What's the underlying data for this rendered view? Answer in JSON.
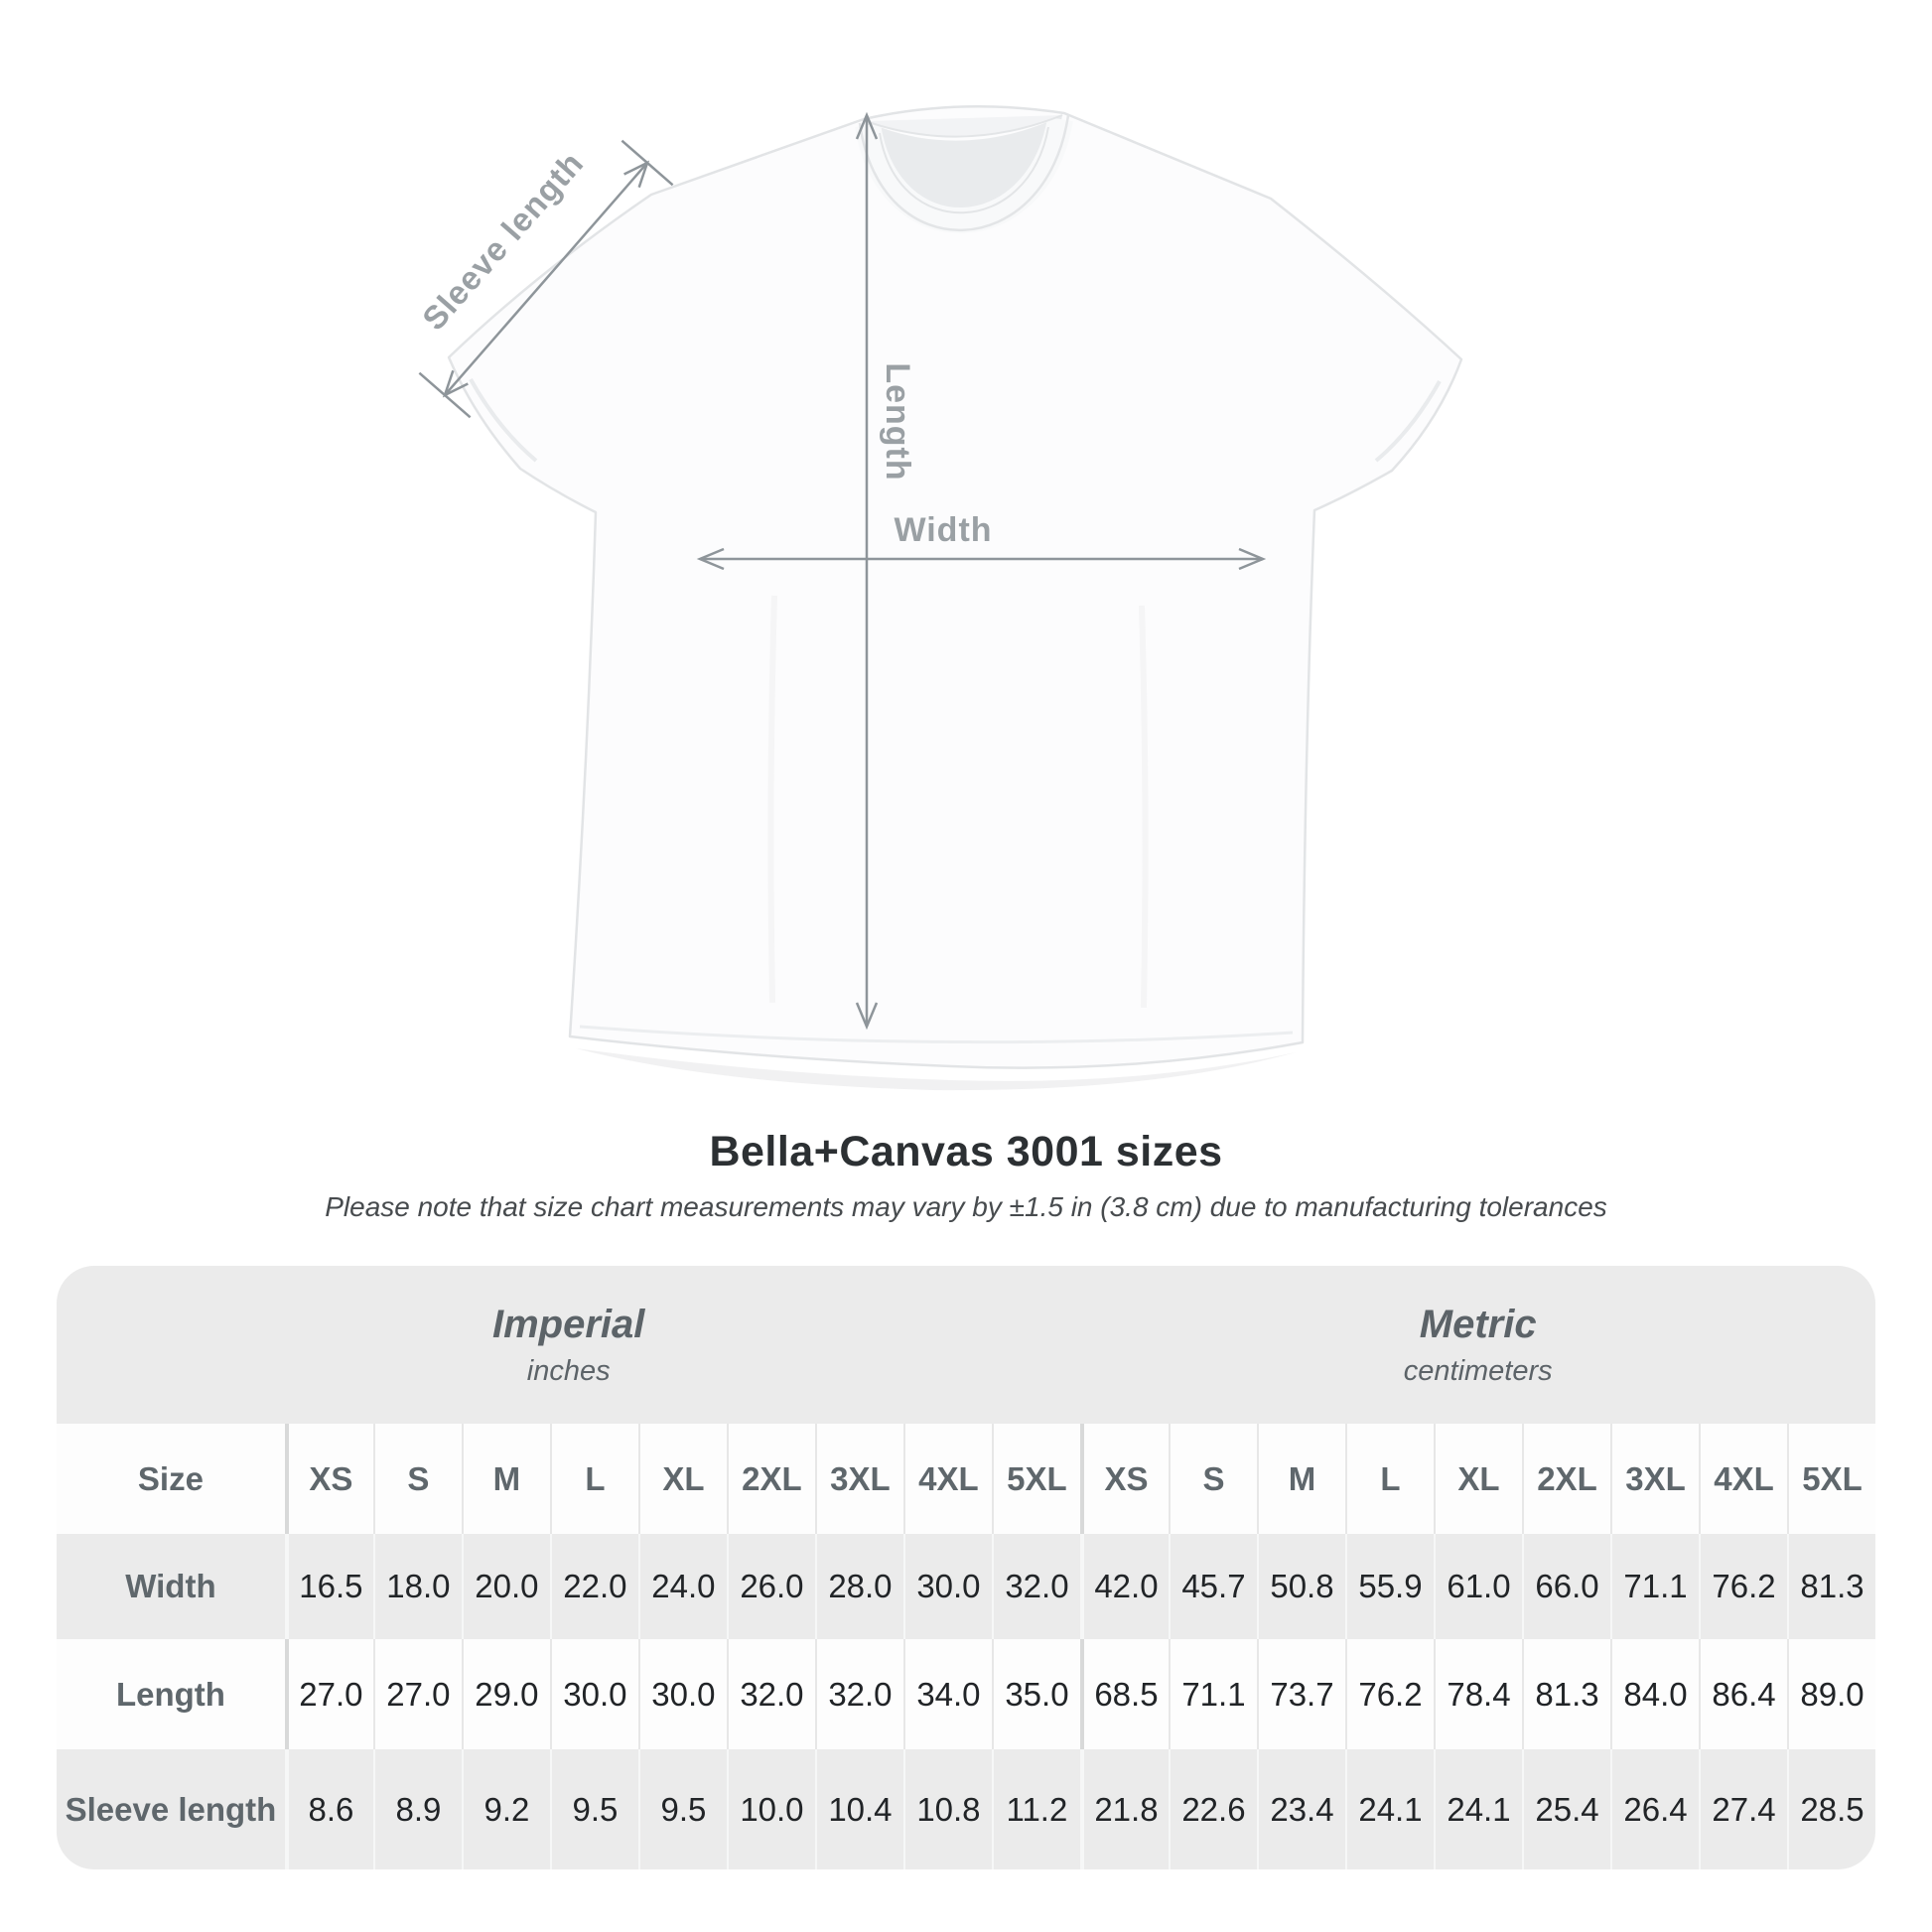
{
  "title": "Bella+Canvas 3001 sizes",
  "subtitle": "Please note that size chart measurements may vary by ±1.5 in (3.8 cm) due to manufacturing tolerances",
  "diagram": {
    "labels": {
      "sleeve": "Sleeve length",
      "length": "Length",
      "width": "Width"
    }
  },
  "table": {
    "size_header": "Size",
    "groups": [
      {
        "label": "Imperial",
        "unit": "inches"
      },
      {
        "label": "Metric",
        "unit": "centimeters"
      }
    ],
    "sizes": [
      "XS",
      "S",
      "M",
      "L",
      "XL",
      "2XL",
      "3XL",
      "4XL",
      "5XL"
    ],
    "rows": [
      {
        "label": "Width",
        "imperial": [
          "16.5",
          "18.0",
          "20.0",
          "22.0",
          "24.0",
          "26.0",
          "28.0",
          "30.0",
          "32.0"
        ],
        "metric": [
          "42.0",
          "45.7",
          "50.8",
          "55.9",
          "61.0",
          "66.0",
          "71.1",
          "76.2",
          "81.3"
        ]
      },
      {
        "label": "Length",
        "imperial": [
          "27.0",
          "27.0",
          "29.0",
          "30.0",
          "30.0",
          "32.0",
          "32.0",
          "34.0",
          "35.0"
        ],
        "metric": [
          "68.5",
          "71.1",
          "73.7",
          "76.2",
          "78.4",
          "81.3",
          "84.0",
          "86.4",
          "89.0"
        ]
      },
      {
        "label": "Sleeve length",
        "imperial": [
          "8.6",
          "8.9",
          "9.2",
          "9.5",
          "9.5",
          "10.0",
          "10.4",
          "10.8",
          "11.2"
        ],
        "metric": [
          "21.8",
          "22.6",
          "23.4",
          "24.1",
          "24.1",
          "25.4",
          "26.4",
          "27.4",
          "28.5"
        ]
      }
    ]
  },
  "chart_data": {
    "type": "table",
    "title": "Bella+Canvas 3001 sizes",
    "note": "Size chart measurements may vary by ±1.5 in (3.8 cm) due to manufacturing tolerances",
    "columns": [
      "Size",
      "XS",
      "S",
      "M",
      "L",
      "XL",
      "2XL",
      "3XL",
      "4XL",
      "5XL"
    ],
    "unit_groups": {
      "imperial": "inches",
      "metric": "centimeters"
    },
    "rows": [
      {
        "measure": "Width",
        "imperial_in": [
          16.5,
          18.0,
          20.0,
          22.0,
          24.0,
          26.0,
          28.0,
          30.0,
          32.0
        ],
        "metric_cm": [
          42.0,
          45.7,
          50.8,
          55.9,
          61.0,
          66.0,
          71.1,
          76.2,
          81.3
        ]
      },
      {
        "measure": "Length",
        "imperial_in": [
          27.0,
          27.0,
          29.0,
          30.0,
          30.0,
          32.0,
          32.0,
          34.0,
          35.0
        ],
        "metric_cm": [
          68.5,
          71.1,
          73.7,
          76.2,
          78.4,
          81.3,
          84.0,
          86.4,
          89.0
        ]
      },
      {
        "measure": "Sleeve length",
        "imperial_in": [
          8.6,
          8.9,
          9.2,
          9.5,
          9.5,
          10.0,
          10.4,
          10.8,
          11.2
        ],
        "metric_cm": [
          21.8,
          22.6,
          23.4,
          24.1,
          24.1,
          25.4,
          26.4,
          27.4,
          28.5
        ]
      }
    ]
  },
  "colors": {
    "table_bg": "#ebebeb",
    "row_white": "#fdfdfd",
    "header_text": "#5f676c",
    "value_text": "#212427",
    "title_text": "#2c3033",
    "diagram_label": "#9aa0a4",
    "arrow": "#8e959a"
  }
}
